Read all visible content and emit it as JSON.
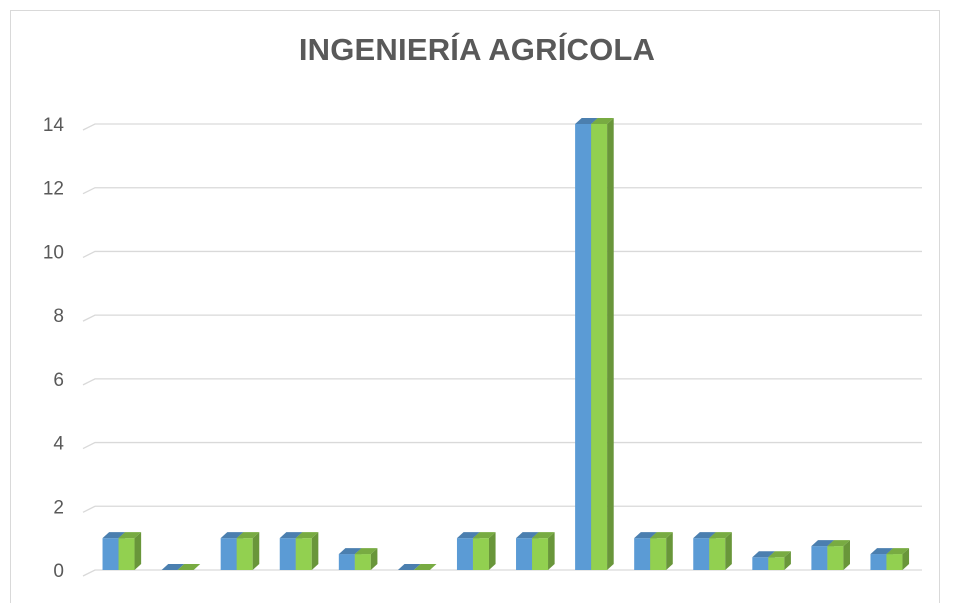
{
  "chart_data": {
    "type": "bar",
    "title": "INGENIERÍA AGRÍCOLA",
    "xlabel": "",
    "ylabel": "",
    "ylim": [
      0,
      14
    ],
    "yticks": [
      0,
      2,
      4,
      6,
      8,
      10,
      12,
      14
    ],
    "categories": [
      "",
      "",
      "",
      "",
      "",
      "",
      "",
      "",
      "",
      "",
      "",
      "",
      "",
      ""
    ],
    "series": [
      {
        "values": [
          1,
          0,
          1,
          1,
          0.5,
          0,
          1,
          1,
          14,
          1,
          1,
          0.4,
          0.75,
          0.5
        ],
        "color": "#5b9bd5"
      },
      {
        "values": [
          1,
          0,
          1,
          1,
          0.5,
          0,
          1,
          1,
          14,
          1,
          1,
          0.4,
          0.75,
          0.5
        ],
        "color": "#92d050"
      }
    ],
    "grid": true,
    "style": "3d-column",
    "legend": "none"
  }
}
